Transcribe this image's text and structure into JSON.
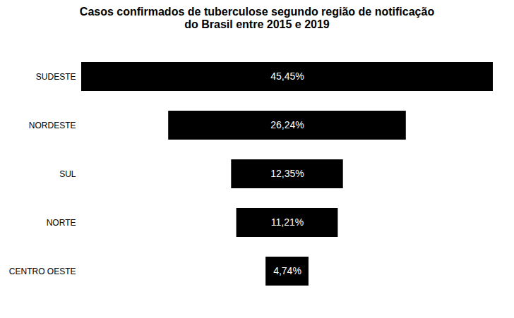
{
  "chart_data": {
    "type": "funnel",
    "title": "Casos confirmados de tuberculose segundo região de notificação\ndo Brasil entre 2015 e 2019",
    "categories": [
      "SUDESTE",
      "NORDESTE",
      "SUL",
      "NORTE",
      "CENTRO OESTE"
    ],
    "values": [
      45.45,
      26.24,
      12.35,
      11.21,
      4.74
    ],
    "value_labels": [
      "45,45%",
      "26,24%",
      "12,35%",
      "11,21%",
      "4,74%"
    ],
    "data_labels": true,
    "orientation": "horizontal",
    "color": "#000000",
    "tick_labels": "y",
    "xlim": [
      0,
      45.45
    ],
    "xticks": []
  }
}
